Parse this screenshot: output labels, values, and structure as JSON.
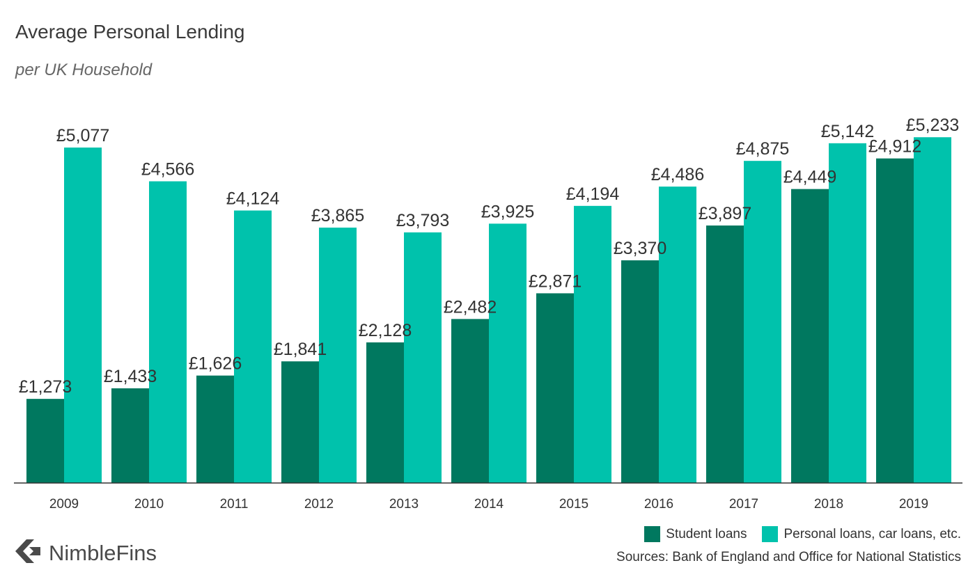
{
  "header": {
    "title": "Average Personal Lending",
    "subtitle": "per UK Household"
  },
  "brand": {
    "name": "NimbleFins",
    "icon": "nimblefins-logo-icon"
  },
  "source": "Sources: Bank of England and Office for National Statistics",
  "colors": {
    "student": "#00785f",
    "personal": "#00c2ac",
    "axis": "#333333",
    "text": "#333333"
  },
  "chart_data": {
    "type": "bar",
    "title": "Average Personal Lending",
    "subtitle": "per UK Household",
    "xlabel": "",
    "ylabel": "",
    "ylim": [
      0,
      5300
    ],
    "grid": false,
    "legend_position": "bottom-right",
    "categories": [
      "2009",
      "2010",
      "2011",
      "2012",
      "2013",
      "2014",
      "2015",
      "2016",
      "2017",
      "2018",
      "2019"
    ],
    "series": [
      {
        "name": "Student loans",
        "values": [
          1273,
          1433,
          1626,
          1841,
          2128,
          2482,
          2871,
          3370,
          3897,
          4449,
          4912
        ],
        "labels": [
          "£1,273",
          "£1,433",
          "£1,626",
          "£1,841",
          "£2,128",
          "£2,482",
          "£2,871",
          "£3,370",
          "£3,897",
          "£4,449",
          "£4,912"
        ]
      },
      {
        "name": "Personal loans, car loans, etc.",
        "values": [
          5077,
          4566,
          4124,
          3865,
          3793,
          3925,
          4194,
          4486,
          4875,
          5142,
          5233
        ],
        "labels": [
          "£5,077",
          "£4,566",
          "£4,124",
          "£3,865",
          "£3,793",
          "£3,925",
          "£4,194",
          "£4,486",
          "£4,875",
          "£5,142",
          "£5,233"
        ]
      }
    ]
  }
}
